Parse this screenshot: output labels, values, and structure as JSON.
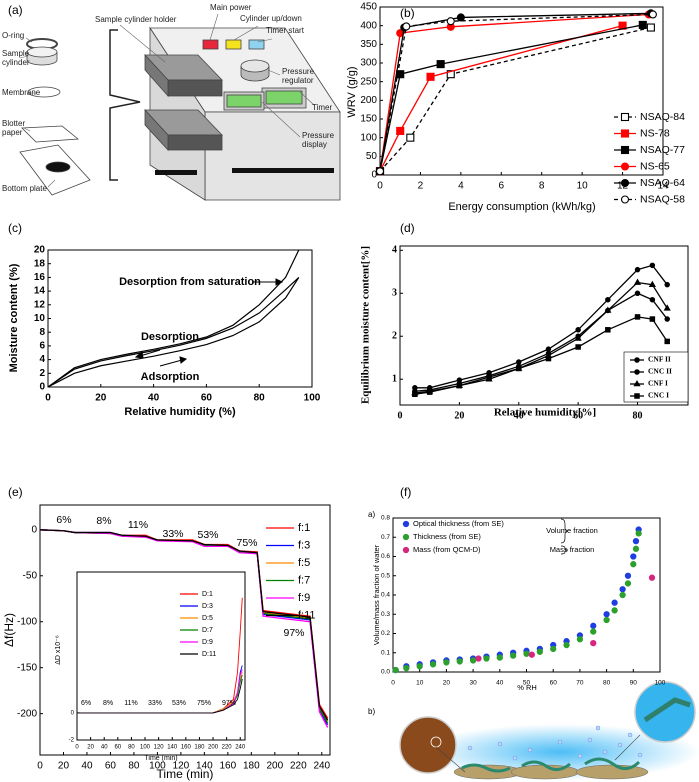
{
  "panels": [
    "(a)",
    "(b)",
    "(c)",
    "(d)",
    "(e)",
    "(f)"
  ],
  "subpanels": [
    "a)",
    "b)"
  ],
  "diagram": {
    "labels": [
      "O-ring",
      "Sample",
      "cylinder",
      "Membrane",
      "Blotter",
      "paper",
      "Bottom plate",
      "Sample cylinder holder",
      "Main power",
      "Cylinder up/down",
      "Timer start",
      "Pressure",
      "regulator",
      "Timer",
      "Pressure",
      "display"
    ]
  },
  "chart_data": [
    {
      "type": "line",
      "xlabel": "Energy consumption (kWh/kg)",
      "ylabel": "WRV (g/g)",
      "xlim": [
        0,
        14
      ],
      "xticks": [
        0,
        2,
        4,
        6,
        8,
        10,
        12,
        14
      ],
      "ylim": [
        0,
        450
      ],
      "yticks": [
        0,
        50,
        100,
        150,
        200,
        250,
        300,
        350,
        400,
        450
      ],
      "legend": "lower right",
      "series": [
        {
          "name": "NSAQ-84",
          "color": "#000000",
          "marker": "square",
          "filled": false,
          "dash": true,
          "x": [
            0,
            1.5,
            3.5,
            13.4
          ],
          "values": [
            10,
            100,
            270,
            395
          ]
        },
        {
          "name": "NS-78",
          "color": "#ff0000",
          "marker": "square",
          "filled": true,
          "dash": false,
          "x": [
            0,
            1,
            2.5,
            12
          ],
          "values": [
            10,
            118,
            263,
            400
          ]
        },
        {
          "name": "NSAQ-77",
          "color": "#000000",
          "marker": "square",
          "filled": true,
          "dash": false,
          "x": [
            0,
            1,
            3,
            13
          ],
          "values": [
            10,
            270,
            297,
            402
          ]
        },
        {
          "name": "NS-65",
          "color": "#ff0000",
          "marker": "circle",
          "filled": true,
          "dash": false,
          "x": [
            0,
            1,
            3.5,
            13.3
          ],
          "values": [
            10,
            380,
            397,
            430
          ]
        },
        {
          "name": "NSAQ-64",
          "color": "#000000",
          "marker": "circle",
          "filled": true,
          "dash": false,
          "x": [
            0,
            1.2,
            4,
            13.4
          ],
          "values": [
            10,
            395,
            422,
            433
          ]
        },
        {
          "name": "NSAQ-58",
          "color": "#000000",
          "marker": "circle",
          "filled": false,
          "dash": true,
          "x": [
            0,
            1.3,
            3.5,
            13.5
          ],
          "values": [
            10,
            398,
            412,
            430
          ]
        }
      ]
    },
    {
      "type": "line",
      "xlabel": "Relative humidity (%)",
      "ylabel": "Moisture content (%)",
      "xlim": [
        0,
        100
      ],
      "xticks": [
        0,
        20,
        40,
        60,
        80,
        100
      ],
      "ylim": [
        0,
        20
      ],
      "yticks": [
        0,
        2,
        4,
        6,
        8,
        10,
        12,
        14,
        16,
        18,
        20
      ],
      "annotations": [
        "Desorption from saturation",
        "Desorption",
        "Adsorption"
      ],
      "series": [
        {
          "color": "#000000",
          "x": [
            0,
            10,
            20,
            30,
            40,
            50,
            60,
            70,
            80,
            90,
            95
          ],
          "values": [
            0,
            2.8,
            4,
            4.8,
            5.5,
            6.3,
            7.3,
            9,
            12,
            16,
            20
          ]
        },
        {
          "color": "#000000",
          "x": [
            0,
            10,
            20,
            30,
            40,
            50,
            60,
            70,
            80,
            90,
            95
          ],
          "values": [
            0,
            2.6,
            3.8,
            4.6,
            5.3,
            6.1,
            7.1,
            8.6,
            10.8,
            14.2,
            16
          ]
        },
        {
          "color": "#000000",
          "x": [
            0,
            10,
            20,
            30,
            40,
            50,
            60,
            70,
            80,
            90,
            95
          ],
          "values": [
            0,
            2,
            3.1,
            3.8,
            4.5,
            5.3,
            6.2,
            7.5,
            9.5,
            13,
            16
          ]
        }
      ]
    },
    {
      "type": "line",
      "xlabel": "Relative humidity[%]",
      "ylabel": "Equilibrium moisture content[%]",
      "xlim": [
        0,
        97
      ],
      "xticks": [
        0,
        20,
        40,
        60,
        80
      ],
      "ylim": [
        0.4,
        4.1
      ],
      "yticks": [
        1,
        2,
        3,
        4
      ],
      "legend": "lower right",
      "x": [
        5,
        10,
        20,
        30,
        40,
        50,
        60,
        70,
        80,
        85,
        90
      ],
      "series": [
        {
          "name": "CNF II",
          "color": "#000000",
          "marker": "circle",
          "filled": true,
          "values": [
            0.8,
            0.8,
            0.98,
            1.15,
            1.4,
            1.7,
            2.15,
            2.85,
            3.55,
            3.65,
            3.2
          ]
        },
        {
          "name": "CNC II",
          "color": "#000000",
          "marker": "circle",
          "filled": true,
          "values": [
            0.72,
            0.75,
            0.9,
            1.08,
            1.3,
            1.6,
            2.0,
            2.6,
            3.0,
            2.85,
            2.4
          ]
        },
        {
          "name": "CNF I",
          "color": "#000000",
          "marker": "triangle",
          "filled": true,
          "values": [
            0.68,
            0.72,
            0.85,
            1.0,
            1.25,
            1.55,
            1.95,
            2.6,
            3.25,
            3.2,
            2.65
          ]
        },
        {
          "name": "CNC I",
          "color": "#000000",
          "marker": "square",
          "filled": true,
          "values": [
            0.65,
            0.7,
            0.85,
            1.05,
            1.25,
            1.48,
            1.75,
            2.15,
            2.45,
            2.4,
            1.88
          ]
        }
      ]
    },
    {
      "type": "line",
      "xlabel": "Time (min)",
      "ylabel": "Δf(Hz)",
      "xlim": [
        0,
        247
      ],
      "xticks": [
        0,
        20,
        40,
        60,
        80,
        100,
        120,
        140,
        160,
        180,
        200,
        220,
        240
      ],
      "ylim": [
        -245,
        27
      ],
      "yticks": [
        0,
        -50,
        -100,
        -150,
        -200
      ],
      "legend": "upper right",
      "annotations": [
        "6%",
        "8%",
        "11%",
        "33%",
        "53%",
        "75%",
        "97%"
      ],
      "x": [
        0,
        20,
        30,
        60,
        70,
        90,
        100,
        130,
        140,
        160,
        170,
        185,
        190,
        230,
        238,
        245
      ],
      "series": [
        {
          "name": "f:1",
          "color": "#ff0000",
          "values": [
            0,
            -1,
            -3,
            -3,
            -6,
            -6,
            -11,
            -11,
            -16,
            -16,
            -23,
            -24,
            -88,
            -94,
            -190,
            -205
          ]
        },
        {
          "name": "f:3",
          "color": "#0000ff",
          "values": [
            0,
            -1,
            -3,
            -3,
            -6,
            -7,
            -12,
            -12,
            -17,
            -17,
            -24,
            -25,
            -92,
            -98,
            -196,
            -212
          ]
        },
        {
          "name": "f:5",
          "color": "#ff8c00",
          "values": [
            0,
            -1,
            -3,
            -4,
            -6,
            -7,
            -11,
            -12,
            -16,
            -17,
            -24,
            -25,
            -90,
            -96,
            -193,
            -208
          ]
        },
        {
          "name": "f:7",
          "color": "#008000",
          "values": [
            0,
            -1,
            -3,
            -4,
            -7,
            -7,
            -12,
            -12,
            -17,
            -18,
            -24,
            -26,
            -91,
            -97,
            -195,
            -210
          ]
        },
        {
          "name": "f:9",
          "color": "#ff00ff",
          "values": [
            0,
            -1,
            -3,
            -4,
            -7,
            -8,
            -12,
            -13,
            -18,
            -18,
            -25,
            -26,
            -94,
            -100,
            -198,
            -215
          ]
        },
        {
          "name": "f:11",
          "color": "#000000",
          "values": [
            0,
            -1,
            -3,
            -3,
            -6,
            -7,
            -11,
            -12,
            -16,
            -17,
            -23,
            -25,
            -89,
            -95,
            -192,
            -207
          ]
        }
      ]
    },
    {
      "type": "line",
      "xlabel": "Time (min)",
      "ylabel": "ΔD x10⁻⁶",
      "xlim": [
        0,
        247
      ],
      "xticks": [
        0,
        20,
        40,
        60,
        80,
        100,
        120,
        140,
        160,
        180,
        200,
        220,
        240
      ],
      "ylim": [
        -2,
        10.4
      ],
      "yticks": [
        -2,
        0
      ],
      "legend": "center",
      "annotations": [
        "6%",
        "8%",
        "11%",
        "33%",
        "53%",
        "75%",
        "97%"
      ],
      "x": [
        0,
        200,
        215,
        230,
        236,
        240,
        243
      ],
      "series": [
        {
          "name": "D:1",
          "color": "#ff0000",
          "values": [
            0,
            0,
            0.3,
            1,
            3,
            6,
            8.5
          ]
        },
        {
          "name": "D:3",
          "color": "#0000ff",
          "values": [
            0,
            0,
            0.3,
            0.8,
            1.5,
            3,
            3.5
          ]
        },
        {
          "name": "D:5",
          "color": "#ff8c00",
          "values": [
            0,
            0,
            0.3,
            0.8,
            1.5,
            2.5,
            3
          ]
        },
        {
          "name": "D:7",
          "color": "#008000",
          "values": [
            0,
            0,
            0.2,
            0.7,
            1.3,
            2.3,
            2.8
          ]
        },
        {
          "name": "D:9",
          "color": "#ff00ff",
          "values": [
            0,
            0,
            0.2,
            0.7,
            1.5,
            2.8,
            3.2
          ]
        },
        {
          "name": "D:11",
          "color": "#000000",
          "values": [
            0,
            0,
            0.2,
            0.6,
            1,
            1.8,
            2.5
          ]
        }
      ]
    },
    {
      "type": "scatter",
      "xlabel": "% RH",
      "ylabel": "Volume/mass fraction of water",
      "xlim": [
        0,
        100
      ],
      "xticks": [
        0,
        10,
        20,
        30,
        40,
        50,
        60,
        70,
        80,
        90,
        100
      ],
      "ylim": [
        0,
        0.8
      ],
      "yticks": [
        {
          "value": 0,
          "label": "0.0"
        },
        0.1,
        0.2,
        0.3,
        0.4,
        0.5,
        0.6,
        0.7,
        0.8
      ],
      "legend": "upper left",
      "annotations": [
        "Volume fraction",
        "Mass fraction"
      ],
      "series": [
        {
          "name": "Optical thickness (from SE)",
          "color": "#1f3ee0",
          "marker": "circle",
          "filled": true,
          "x": [
            1,
            5,
            10,
            15,
            20,
            25,
            30,
            35,
            40,
            45,
            50,
            55,
            60,
            65,
            70,
            75,
            80,
            83,
            86,
            88,
            90,
            91,
            92
          ],
          "values": [
            0.01,
            0.03,
            0.04,
            0.05,
            0.06,
            0.065,
            0.07,
            0.08,
            0.09,
            0.1,
            0.11,
            0.12,
            0.14,
            0.16,
            0.19,
            0.24,
            0.3,
            0.36,
            0.43,
            0.5,
            0.6,
            0.68,
            0.74
          ]
        },
        {
          "name": "Thickness (from SE)",
          "color": "#2ca02c",
          "marker": "circle",
          "filled": true,
          "x": [
            1,
            5,
            10,
            15,
            20,
            25,
            30,
            35,
            40,
            45,
            50,
            55,
            60,
            65,
            70,
            75,
            80,
            83,
            86,
            88,
            90,
            91,
            92
          ],
          "values": [
            0.01,
            0.02,
            0.03,
            0.04,
            0.05,
            0.055,
            0.06,
            0.07,
            0.075,
            0.085,
            0.095,
            0.105,
            0.12,
            0.14,
            0.17,
            0.21,
            0.27,
            0.32,
            0.4,
            0.46,
            0.56,
            0.64,
            0.72
          ]
        },
        {
          "name": "Mass (from QCM-D)",
          "color": "#d6267e",
          "marker": "circle",
          "filled": true,
          "x": [
            32,
            52,
            75,
            97
          ],
          "values": [
            0.07,
            0.09,
            0.15,
            0.49
          ]
        }
      ]
    }
  ]
}
